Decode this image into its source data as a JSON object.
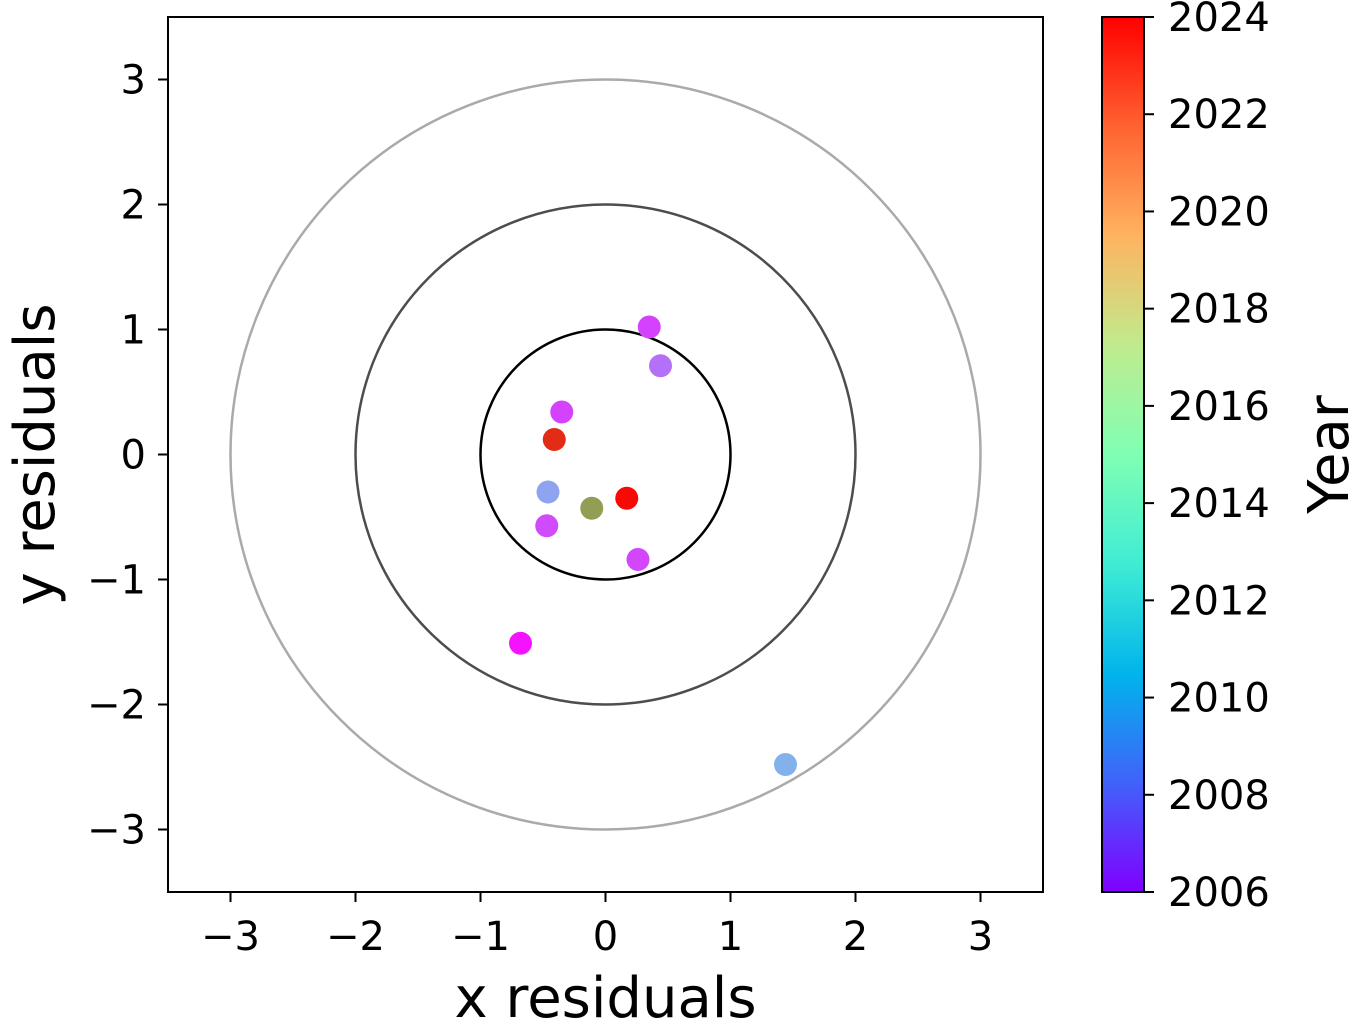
{
  "chart_data": {
    "type": "scatter",
    "xlabel": "x residuals",
    "ylabel": "y residuals",
    "xlim": [
      -3.5,
      3.5
    ],
    "ylim": [
      -3.5,
      3.5
    ],
    "x_ticks": [
      -3,
      -2,
      -1,
      0,
      1,
      2,
      3
    ],
    "y_ticks": [
      -3,
      -2,
      -1,
      0,
      1,
      2,
      3
    ],
    "x_tick_labels": [
      "−3",
      "−2",
      "−1",
      "0",
      "1",
      "2",
      "3"
    ],
    "y_tick_labels": [
      "−3",
      "−2",
      "−1",
      "0",
      "1",
      "2",
      "3"
    ],
    "grid": false,
    "circles": [
      {
        "radius": 1,
        "color": "#000000"
      },
      {
        "radius": 2,
        "color": "#4d4d4d"
      },
      {
        "radius": 3,
        "color": "#aaaaaa"
      }
    ],
    "points": [
      {
        "x": 0.35,
        "y": 1.02,
        "year": 2007.5
      },
      {
        "x": 0.44,
        "y": 0.71,
        "year": 2008.6
      },
      {
        "x": -0.35,
        "y": 0.34,
        "year": 2007.5
      },
      {
        "x": -0.41,
        "y": 0.12,
        "year": 2023.0
      },
      {
        "x": -0.46,
        "y": -0.3,
        "year": 2010.0
      },
      {
        "x": -0.11,
        "y": -0.43,
        "year": 2020.2
      },
      {
        "x": 0.17,
        "y": -0.35,
        "year": 2023.8
      },
      {
        "x": -0.47,
        "y": -0.57,
        "year": 2007.7
      },
      {
        "x": 0.26,
        "y": -0.84,
        "year": 2007.6
      },
      {
        "x": -0.68,
        "y": -1.51,
        "year": 2006.4
      },
      {
        "x": 1.44,
        "y": -2.48,
        "year": 2010.4
      }
    ],
    "colorbar": {
      "label": "Year",
      "colormap": "rainbow",
      "min": 2006,
      "max": 2024,
      "ticks": [
        2006,
        2008,
        2010,
        2012,
        2014,
        2016,
        2018,
        2020,
        2022,
        2024
      ],
      "tick_labels": [
        "2006",
        "2008",
        "2010",
        "2012",
        "2014",
        "2016",
        "2018",
        "2020",
        "2022",
        "2024"
      ]
    }
  }
}
